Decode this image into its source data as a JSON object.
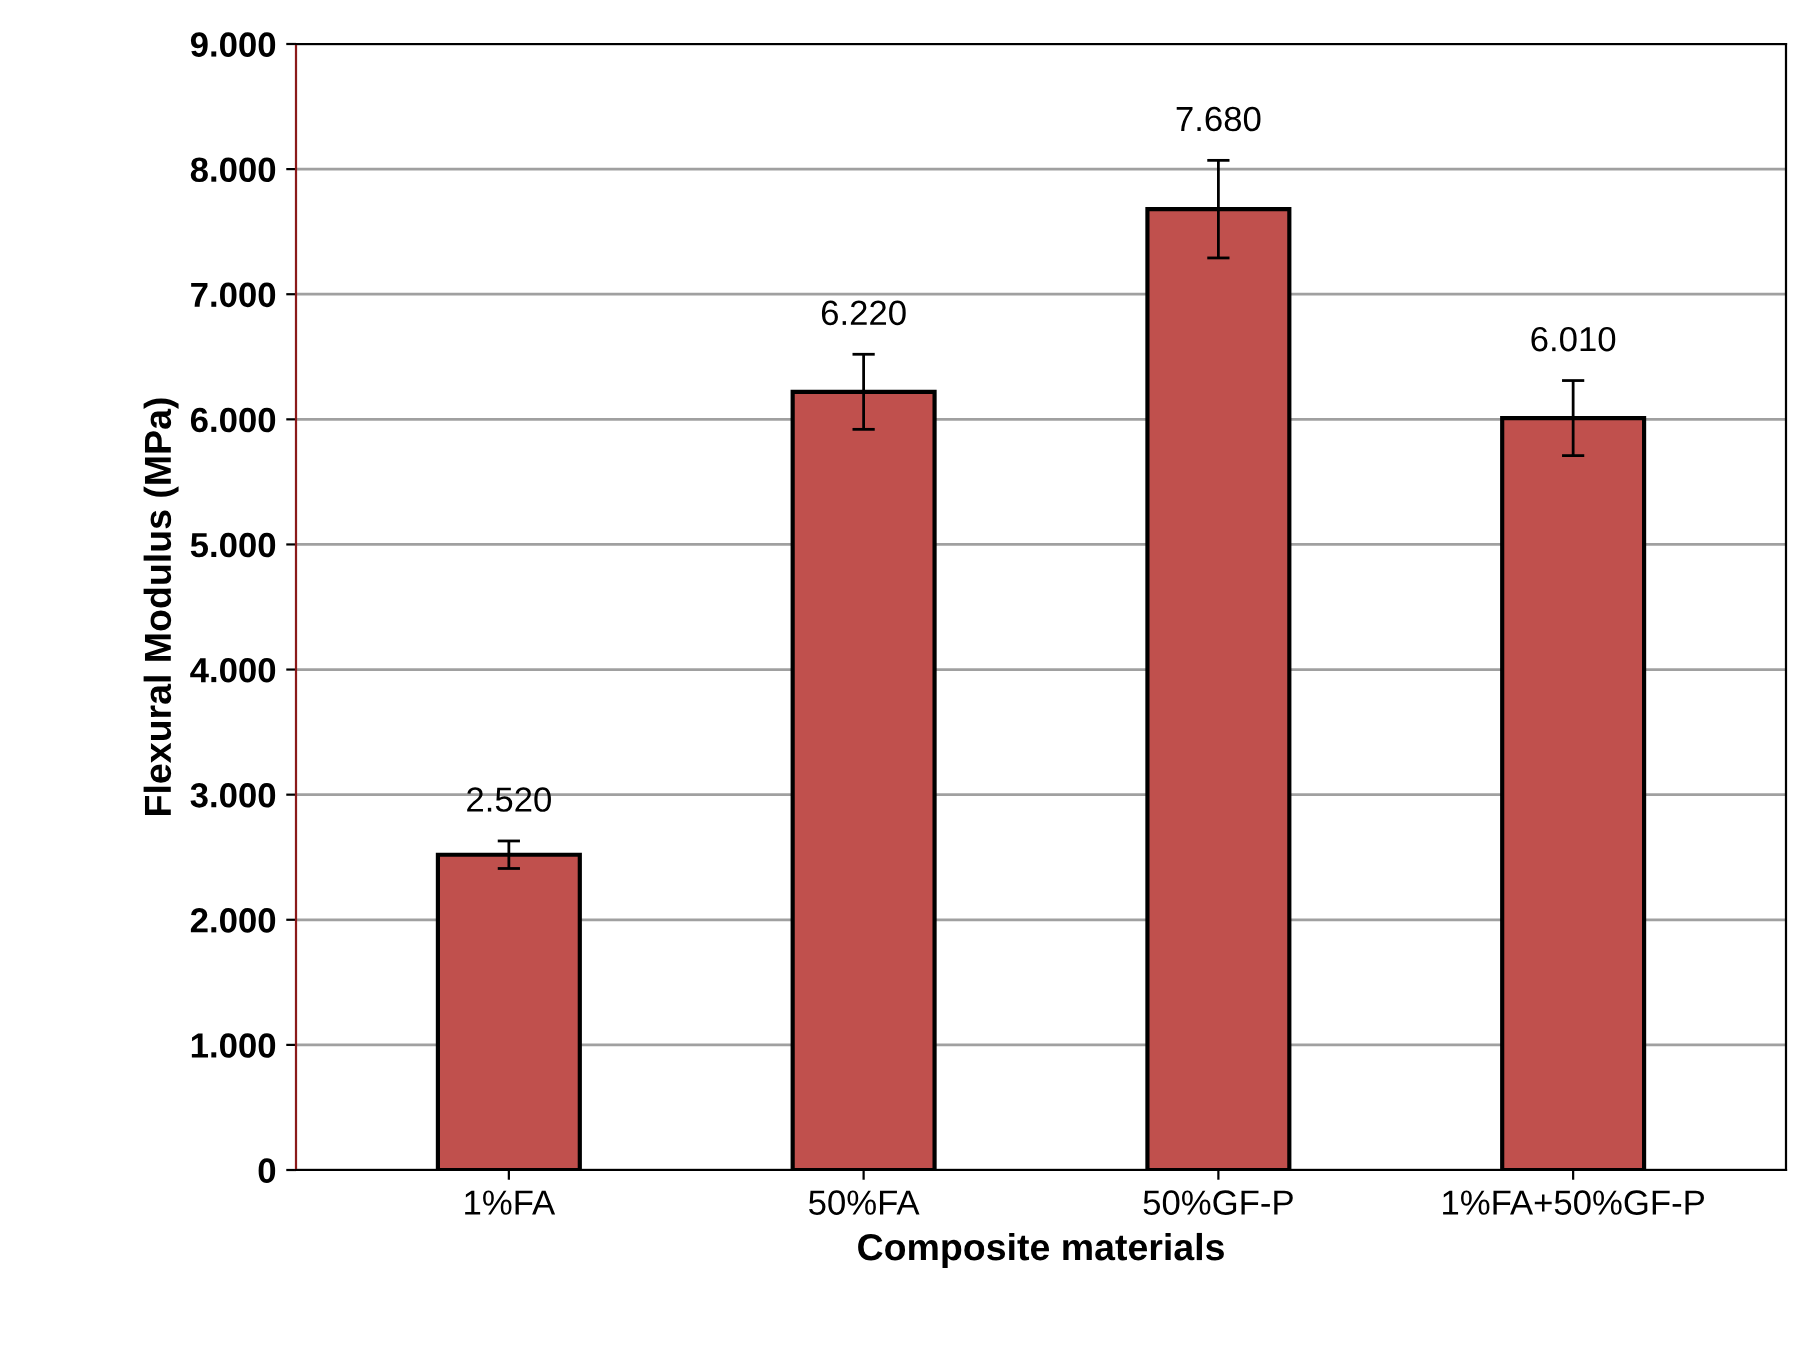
{
  "chart_data": {
    "type": "bar",
    "xlabel": "Composite materials",
    "ylabel": "Flexural Modulus (MPa)",
    "categories": [
      "1%FA",
      "50%FA",
      "50%GF-P",
      "1%FA+50%GF-P"
    ],
    "values": [
      2520,
      6220,
      7680,
      6010
    ],
    "errors": [
      110,
      300,
      390,
      300
    ],
    "value_labels": [
      "2.520",
      "6.220",
      "7.680",
      "6.010"
    ],
    "color": "#c0504d",
    "ylim": [
      0,
      9000
    ],
    "yticks": [
      {
        "value": 0,
        "label": "0"
      },
      {
        "value": 1000,
        "label": "1.000"
      },
      {
        "value": 2000,
        "label": "2.000"
      },
      {
        "value": 3000,
        "label": "3.000"
      },
      {
        "value": 4000,
        "label": "4.000"
      },
      {
        "value": 5000,
        "label": "5.000"
      },
      {
        "value": 6000,
        "label": "6.000"
      },
      {
        "value": 7000,
        "label": "7.000"
      },
      {
        "value": 8000,
        "label": "8.000"
      },
      {
        "value": 9000,
        "label": "9.000"
      }
    ],
    "grid": "y",
    "legend": false
  }
}
